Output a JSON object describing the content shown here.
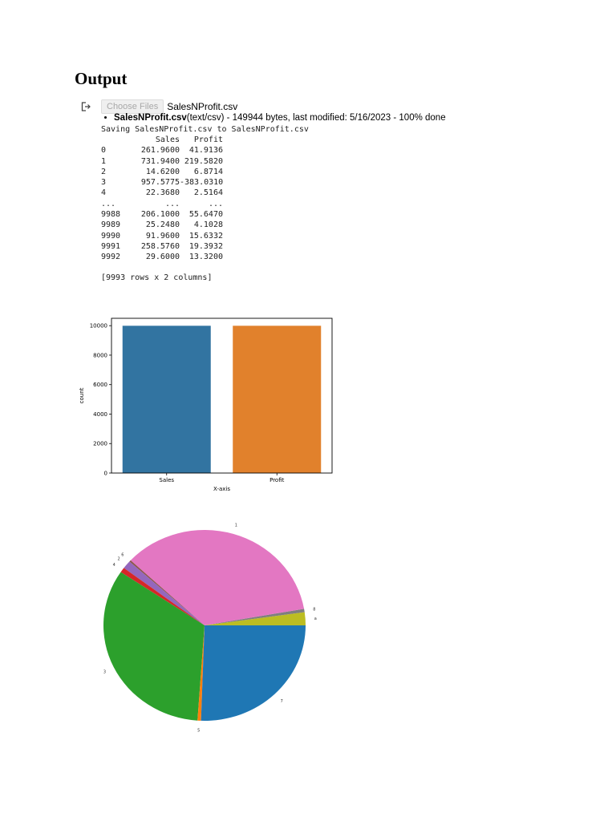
{
  "heading": "Output",
  "upload": {
    "icon": "output-redirect-icon",
    "choose_label": "Choose Files",
    "chosen_file": "SalesNProfit.csv",
    "file_name": "SalesNProfit.csv",
    "file_info": "(text/csv) - 149944 bytes, last modified: 5/16/2023 - 100% done",
    "saving_line": "Saving SalesNProfit.csv to SalesNProfit.csv"
  },
  "dataframe": {
    "columns": [
      "",
      "Sales",
      "Profit"
    ],
    "rows": [
      [
        "0",
        "261.9600",
        "41.9136"
      ],
      [
        "1",
        "731.9400",
        "219.5820"
      ],
      [
        "2",
        "14.6200",
        "6.8714"
      ],
      [
        "3",
        "957.5775",
        "-383.0310"
      ],
      [
        "4",
        "22.3680",
        "2.5164"
      ],
      [
        "...",
        "...",
        "..."
      ],
      [
        "9988",
        "206.1000",
        "55.6470"
      ],
      [
        "9989",
        "25.2480",
        "4.1028"
      ],
      [
        "9990",
        "91.9600",
        "15.6332"
      ],
      [
        "9991",
        "258.5760",
        "19.3932"
      ],
      [
        "9992",
        "29.6000",
        "13.3200"
      ]
    ],
    "shape_note": "[9993 rows x 2 columns]"
  },
  "chart_data": [
    {
      "type": "bar",
      "title": "",
      "categories": [
        "Sales",
        "Profit"
      ],
      "values": [
        9993,
        9993
      ],
      "colors": [
        "#3274a1",
        "#e1812c"
      ],
      "xlabel": "X-axis",
      "ylabel": "count",
      "ylim": [
        0,
        10500
      ],
      "yticks": [
        0,
        2000,
        4000,
        6000,
        8000,
        10000
      ],
      "grid": false
    },
    {
      "type": "pie",
      "title": "",
      "note": "slice labels are illegible tiny glyphs; approximate angular spans estimated in degrees, counter-clockwise from east",
      "slices": [
        {
          "label": "a",
          "start": 0,
          "end": 8,
          "color": "#bcbd22"
        },
        {
          "label": "8",
          "start": 8,
          "end": 10,
          "color": "#7f7f7f"
        },
        {
          "label": "1",
          "start": 10,
          "end": 137,
          "color": "#e377c2"
        },
        {
          "label": "6",
          "start": 137,
          "end": 138,
          "color": "#8c564b"
        },
        {
          "label": "2",
          "start": 138,
          "end": 143,
          "color": "#9467bd"
        },
        {
          "label": "4",
          "start": 143,
          "end": 146,
          "color": "#d62728"
        },
        {
          "label": "3",
          "start": 146,
          "end": 266,
          "color": "#2ca02c"
        },
        {
          "label": "5",
          "start": 266,
          "end": 268,
          "color": "#ff7f0e"
        },
        {
          "label": "7",
          "start": 268,
          "end": 360,
          "color": "#1f77b4"
        }
      ]
    }
  ]
}
